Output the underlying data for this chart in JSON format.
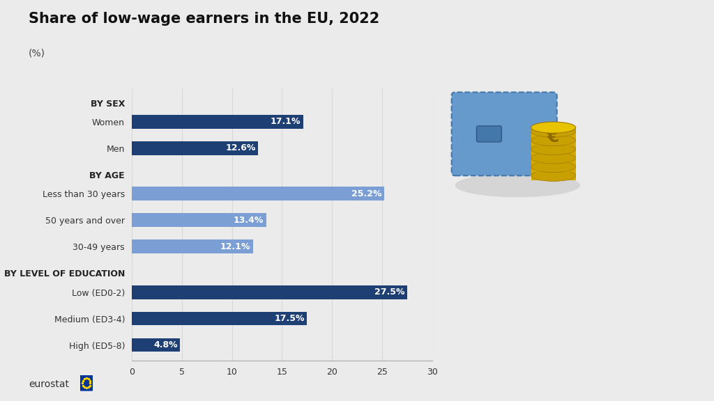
{
  "title": "Share of low-wage earners in the EU, 2022",
  "subtitle": "(%)",
  "background_color": "#ebebeb",
  "plot_background": "#ebebeb",
  "categories": [
    "BY SEX",
    "Women",
    "Men",
    "BY AGE",
    "Less than 30 years",
    "50 years and over",
    "30-49 years",
    "BY LEVEL OF EDUCATION",
    "Low (ED0-2)",
    "Medium (ED3-4)",
    "High (ED5-8)"
  ],
  "values": [
    null,
    17.1,
    12.6,
    null,
    25.2,
    13.4,
    12.1,
    null,
    27.5,
    17.5,
    4.8
  ],
  "bar_colors": [
    null,
    "#1e3f73",
    "#1e3f73",
    null,
    "#7b9fd4",
    "#7b9fd4",
    "#7b9fd4",
    null,
    "#1e3f73",
    "#1e3f73",
    "#1e3f73"
  ],
  "label_values": [
    null,
    "17.1%",
    "12.6%",
    null,
    "25.2%",
    "13.4%",
    "12.1%",
    null,
    "27.5%",
    "17.5%",
    "4.8%"
  ],
  "header_indices": [
    0,
    3,
    7
  ],
  "xlim": [
    0,
    30
  ],
  "xticks": [
    0,
    5,
    10,
    15,
    20,
    25,
    30
  ],
  "title_fontsize": 15,
  "subtitle_fontsize": 10,
  "tick_fontsize": 9,
  "bar_label_fontsize": 9,
  "category_fontsize": 9,
  "header_fontsize": 9,
  "bar_height": 0.52,
  "grid_color": "#d8d8d8",
  "spine_color": "#aaaaaa",
  "label_color": "#333333",
  "header_color": "#222222"
}
